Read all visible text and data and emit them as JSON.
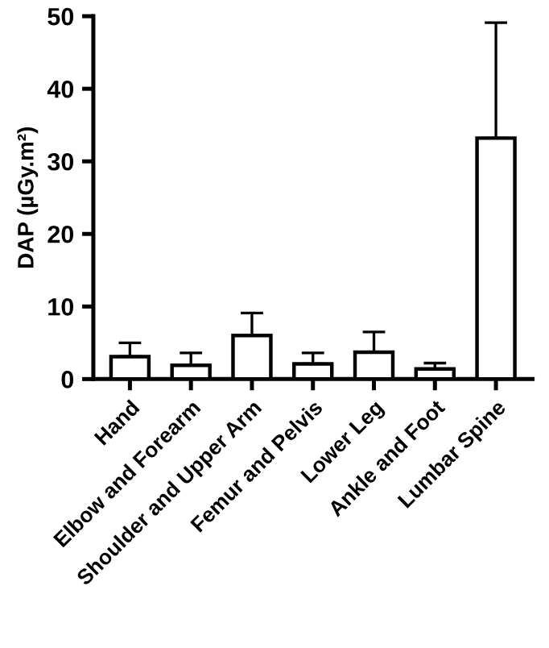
{
  "chart_data": {
    "type": "bar",
    "ylabel": "DAP (µGy.m²)",
    "categories": [
      "Hand",
      "Elbow and Forearm",
      "Shoulder and Upper Arm",
      "Femur and Pelvis",
      "Lower Leg",
      "Ankle and Foot",
      "Lumbar Spine"
    ],
    "values": [
      3.1,
      1.9,
      6.0,
      2.1,
      3.7,
      1.4,
      33.2
    ],
    "errors": [
      [
        3.1,
        5.0
      ],
      [
        1.9,
        3.6
      ],
      [
        6.0,
        9.1
      ],
      [
        2.1,
        3.6
      ],
      [
        3.7,
        6.5
      ],
      [
        1.4,
        2.2
      ],
      [
        33.2,
        49.1
      ]
    ],
    "color": "#ffffff",
    "ylim": [
      0,
      50
    ],
    "yticks": [
      0,
      10,
      20,
      30,
      40,
      50
    ],
    "grid": false
  }
}
